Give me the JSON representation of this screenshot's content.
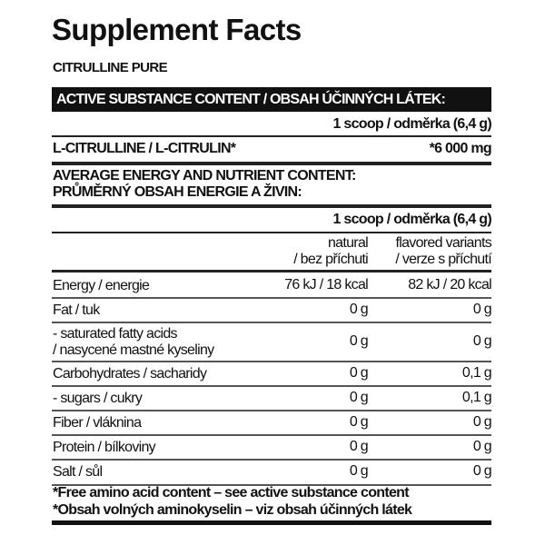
{
  "title": "Supplement Facts",
  "product": "CITRULLINE PURE",
  "active_header": "ACTIVE SUBSTANCE CONTENT / OBSAH ÚČINNÝCH LÁTEK:",
  "serving": "1 scoop / odměrka (6,4 g)",
  "active": {
    "name": "L-CITRULLINE / L-CITRULIN*",
    "value": "*6 000 mg"
  },
  "nutrient_header": [
    "AVERAGE ENERGY AND NUTRIENT CONTENT:",
    "PRŮMĚRNÝ OBSAH ENERGIE A ŽIVIN:"
  ],
  "serving2": "1 scoop / odměrka (6,4 g)",
  "columns": [
    [
      "natural",
      "/ bez příchuti"
    ],
    [
      "flavored variants",
      "/ verze s příchutí"
    ]
  ],
  "rows": [
    {
      "name": [
        "Energy / energie"
      ],
      "v1": "76 kJ / 18 kcal",
      "v2": "82 kJ / 20 kcal"
    },
    {
      "name": [
        "Fat / tuk"
      ],
      "v1": "0 g",
      "v2": "0 g"
    },
    {
      "name": [
        "- saturated fatty acids",
        "/ nasycené mastné kyseliny"
      ],
      "v1": "0 g",
      "v2": "0 g"
    },
    {
      "name": [
        "Carbohydrates / sacharidy"
      ],
      "v1": "0 g",
      "v2": "0,1 g"
    },
    {
      "name": [
        "- sugars / cukry"
      ],
      "v1": "0 g",
      "v2": "0,1 g"
    },
    {
      "name": [
        "Fiber / vláknina"
      ],
      "v1": "0 g",
      "v2": "0 g"
    },
    {
      "name": [
        "Protein / bílkoviny"
      ],
      "v1": "0 g",
      "v2": "0 g"
    },
    {
      "name": [
        "Salt / sůl"
      ],
      "v1": "0 g",
      "v2": "0 g"
    }
  ],
  "footnotes": [
    "*Free amino acid content – see active substance content",
    "*Obsah volných aminokyselin – viz obsah účinných látek"
  ]
}
